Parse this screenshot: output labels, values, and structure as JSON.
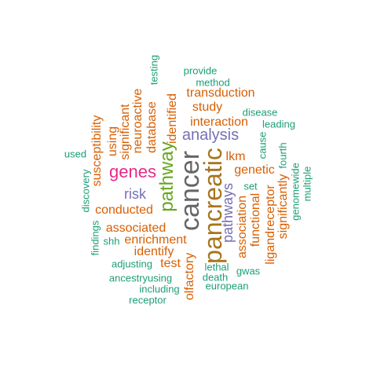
{
  "palette": {
    "green": "#1b9e77",
    "orange": "#d95f02",
    "purple": "#7570b3",
    "magenta": "#e7298a",
    "lime": "#66a61e",
    "olive": "#a6761d",
    "gray": "#666666"
  },
  "words": [
    {
      "id": "cancer",
      "text": "cancer",
      "color": "#666666"
    },
    {
      "id": "pancreatic",
      "text": "pancreatic",
      "color": "#a6761d"
    },
    {
      "id": "pathway",
      "text": "pathway",
      "color": "#66a61e"
    },
    {
      "id": "genes",
      "text": "genes",
      "color": "#e7298a"
    },
    {
      "id": "analysis",
      "text": "analysis",
      "color": "#7570b3"
    },
    {
      "id": "pathways",
      "text": "pathways",
      "color": "#7570b3"
    },
    {
      "id": "risk",
      "text": "risk",
      "color": "#7570b3"
    },
    {
      "id": "interaction",
      "text": "interaction",
      "color": "#d95f02"
    },
    {
      "id": "transduction",
      "text": "transduction",
      "color": "#d95f02"
    },
    {
      "id": "study",
      "text": "study",
      "color": "#d95f02"
    },
    {
      "id": "lkm",
      "text": "lkm",
      "color": "#d95f02"
    },
    {
      "id": "genetic",
      "text": "genetic",
      "color": "#d95f02"
    },
    {
      "id": "conducted",
      "text": "conducted",
      "color": "#d95f02"
    },
    {
      "id": "associated",
      "text": "associated",
      "color": "#d95f02"
    },
    {
      "id": "enrichment",
      "text": "enrichment",
      "color": "#d95f02"
    },
    {
      "id": "identify",
      "text": "identify",
      "color": "#d95f02"
    },
    {
      "id": "test",
      "text": "test",
      "color": "#d95f02"
    },
    {
      "id": "susceptibility",
      "text": "susceptibility",
      "color": "#d95f02"
    },
    {
      "id": "using",
      "text": "using",
      "color": "#d95f02"
    },
    {
      "id": "significant",
      "text": "significant",
      "color": "#d95f02"
    },
    {
      "id": "neuroactive",
      "text": "neuroactive",
      "color": "#d95f02"
    },
    {
      "id": "database",
      "text": "database",
      "color": "#d95f02"
    },
    {
      "id": "identified",
      "text": "identified",
      "color": "#d95f02"
    },
    {
      "id": "functional",
      "text": "functional",
      "color": "#d95f02"
    },
    {
      "id": "association",
      "text": "association",
      "color": "#d95f02"
    },
    {
      "id": "ligandreceptor",
      "text": "ligandreceptor",
      "color": "#d95f02"
    },
    {
      "id": "significantly",
      "text": "significantly",
      "color": "#d95f02"
    },
    {
      "id": "olfactory",
      "text": "olfactory",
      "color": "#d95f02"
    },
    {
      "id": "provide",
      "text": "provide",
      "color": "#1b9e77"
    },
    {
      "id": "method",
      "text": "method",
      "color": "#1b9e77"
    },
    {
      "id": "testing",
      "text": "testing",
      "color": "#1b9e77"
    },
    {
      "id": "disease",
      "text": "disease",
      "color": "#1b9e77"
    },
    {
      "id": "leading",
      "text": "leading",
      "color": "#1b9e77"
    },
    {
      "id": "cause",
      "text": "cause",
      "color": "#1b9e77"
    },
    {
      "id": "fourth",
      "text": "fourth",
      "color": "#1b9e77"
    },
    {
      "id": "genomewide",
      "text": "genomewide",
      "color": "#1b9e77"
    },
    {
      "id": "multiple",
      "text": "multiple",
      "color": "#1b9e77"
    },
    {
      "id": "set",
      "text": "set",
      "color": "#1b9e77"
    },
    {
      "id": "used",
      "text": "used",
      "color": "#1b9e77"
    },
    {
      "id": "discovery",
      "text": "discovery",
      "color": "#1b9e77"
    },
    {
      "id": "findings",
      "text": "findings",
      "color": "#1b9e77"
    },
    {
      "id": "shh",
      "text": "shh",
      "color": "#1b9e77"
    },
    {
      "id": "adjusting",
      "text": "adjusting",
      "color": "#1b9e77"
    },
    {
      "id": "ancestryusing",
      "text": "ancestryusing",
      "color": "#1b9e77"
    },
    {
      "id": "including",
      "text": "including",
      "color": "#1b9e77"
    },
    {
      "id": "receptor",
      "text": "receptor",
      "color": "#1b9e77"
    },
    {
      "id": "lethal",
      "text": "lethal",
      "color": "#1b9e77"
    },
    {
      "id": "death",
      "text": "death",
      "color": "#1b9e77"
    },
    {
      "id": "gwas",
      "text": "gwas",
      "color": "#1b9e77"
    },
    {
      "id": "european",
      "text": "european",
      "color": "#1b9e77"
    }
  ]
}
